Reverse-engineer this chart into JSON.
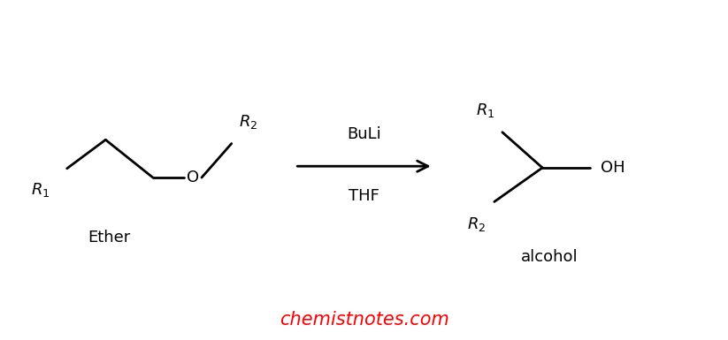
{
  "background_color": "#ffffff",
  "watermark_text": "chemistnotes.com",
  "watermark_color": "#ff0000",
  "watermark_fontsize": 15,
  "label_ether": "Ether",
  "label_alcohol": "alcohol",
  "reagent_top": "BuLi",
  "reagent_bottom": "THF",
  "line_color": "#000000",
  "fig_width": 8.23,
  "fig_height": 3.85,
  "dpi": 100
}
